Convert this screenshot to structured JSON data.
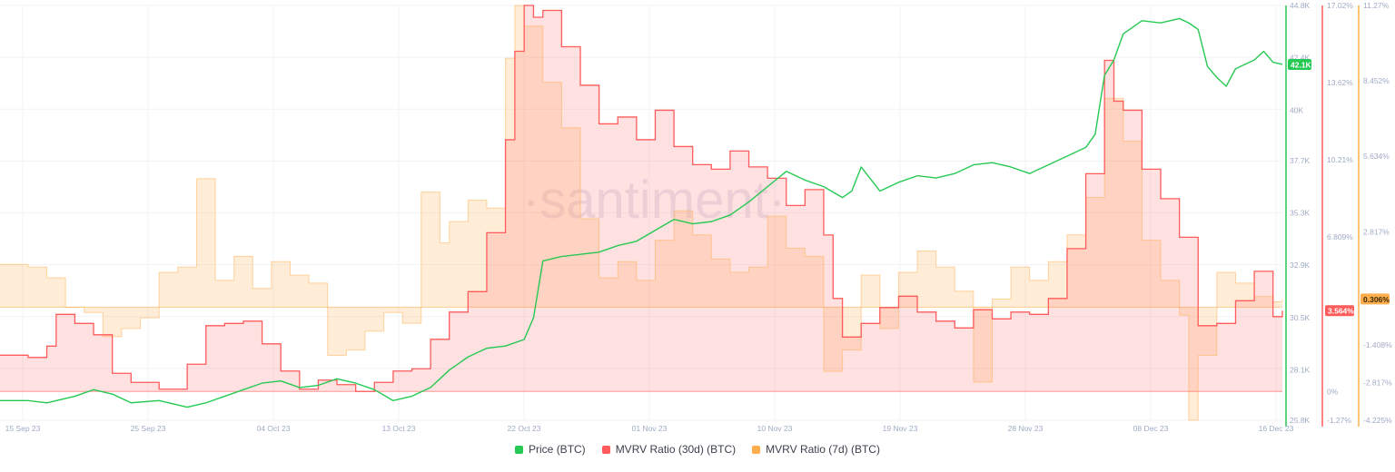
{
  "watermark": "·santiment·",
  "colors": {
    "price": "#26c953",
    "mvrv30": "#ff5b5b",
    "mvrv7": "#ffad4d",
    "grid": "#f1f3f7",
    "axis_text": "#9faac4"
  },
  "chart_data": {
    "type": "line",
    "x_ticks": [
      "15 Sep 23",
      "25 Sep 23",
      "04 Oct 23",
      "13 Oct 23",
      "22 Oct 23",
      "01 Nov 23",
      "10 Nov 23",
      "19 Nov 23",
      "28 Nov 23",
      "08 Dec 23",
      "16 Dec 23"
    ],
    "axes": {
      "price": {
        "ticks": [
          "44.8K",
          "42.4K",
          "40K",
          "37.7K",
          "35.3K",
          "32.9K",
          "30.5K",
          "28.1K",
          "25.8K"
        ],
        "min": 25.8,
        "max": 44.8,
        "unit": "K"
      },
      "mvrv30": {
        "ticks": [
          "17.02%",
          "13.62%",
          "10.21%",
          "6.809%",
          "3.564%",
          "0%",
          "-1.27%"
        ],
        "min": -1.27,
        "max": 17.02,
        "unit": "%"
      },
      "mvrv7": {
        "ticks": [
          "11.27%",
          "8.452%",
          "5.634%",
          "2.817%",
          "0.306%",
          "-1.408%",
          "-2.817%",
          "-4.225%"
        ],
        "min": -4.225,
        "max": 11.27,
        "unit": "%"
      }
    },
    "current": {
      "price": "42.1K",
      "mvrv30": "3.564%",
      "mvrv7": "0.306%"
    },
    "series": [
      {
        "name": "Price (BTC)",
        "axis": "price",
        "points": [
          [
            0,
            26.7
          ],
          [
            3,
            26.7
          ],
          [
            5,
            26.6
          ],
          [
            8,
            26.9
          ],
          [
            10,
            27.2
          ],
          [
            12,
            27.0
          ],
          [
            14,
            26.6
          ],
          [
            17,
            26.7
          ],
          [
            20,
            26.4
          ],
          [
            22,
            26.6
          ],
          [
            24,
            26.9
          ],
          [
            26,
            27.2
          ],
          [
            28,
            27.5
          ],
          [
            30,
            27.6
          ],
          [
            32,
            27.3
          ],
          [
            34,
            27.4
          ],
          [
            36,
            27.7
          ],
          [
            38,
            27.5
          ],
          [
            40,
            27.2
          ],
          [
            42,
            26.7
          ],
          [
            44,
            26.9
          ],
          [
            46,
            27.3
          ],
          [
            48,
            28.1
          ],
          [
            50,
            28.7
          ],
          [
            52,
            29.1
          ],
          [
            54,
            29.2
          ],
          [
            56,
            29.5
          ],
          [
            57,
            30.5
          ],
          [
            58,
            33.1
          ],
          [
            60,
            33.3
          ],
          [
            62,
            33.4
          ],
          [
            64,
            33.5
          ],
          [
            66,
            33.8
          ],
          [
            68,
            34.0
          ],
          [
            70,
            34.5
          ],
          [
            72,
            35.0
          ],
          [
            74,
            34.8
          ],
          [
            76,
            34.9
          ],
          [
            78,
            35.2
          ],
          [
            80,
            35.8
          ],
          [
            82,
            36.5
          ],
          [
            84,
            37.2
          ],
          [
            86,
            36.8
          ],
          [
            88,
            36.5
          ],
          [
            90,
            36.0
          ],
          [
            91,
            36.3
          ],
          [
            92,
            37.4
          ],
          [
            94,
            36.3
          ],
          [
            96,
            36.7
          ],
          [
            98,
            37.0
          ],
          [
            100,
            36.9
          ],
          [
            102,
            37.1
          ],
          [
            104,
            37.5
          ],
          [
            106,
            37.6
          ],
          [
            108,
            37.4
          ],
          [
            110,
            37.1
          ],
          [
            112,
            37.5
          ],
          [
            114,
            37.9
          ],
          [
            116,
            38.3
          ],
          [
            117,
            38.9
          ],
          [
            118,
            41.6
          ],
          [
            119,
            42.3
          ],
          [
            120,
            43.5
          ],
          [
            122,
            44.1
          ],
          [
            124,
            44.0
          ],
          [
            126,
            44.2
          ],
          [
            127,
            44.0
          ],
          [
            128,
            43.7
          ],
          [
            129,
            42.0
          ],
          [
            130,
            41.5
          ],
          [
            131,
            41.1
          ],
          [
            132,
            41.9
          ],
          [
            134,
            42.3
          ],
          [
            135,
            42.7
          ],
          [
            136,
            42.2
          ],
          [
            137,
            42.1
          ]
        ]
      },
      {
        "name": "MVRV Ratio (30d) (BTC)",
        "axis": "mvrv30",
        "points": [
          [
            0,
            1.6
          ],
          [
            3,
            1.5
          ],
          [
            5,
            2.0
          ],
          [
            6,
            3.4
          ],
          [
            8,
            3.0
          ],
          [
            10,
            2.5
          ],
          [
            12,
            0.8
          ],
          [
            14,
            0.4
          ],
          [
            17,
            0.1
          ],
          [
            20,
            1.2
          ],
          [
            22,
            2.9
          ],
          [
            24,
            3.0
          ],
          [
            26,
            3.1
          ],
          [
            28,
            2.1
          ],
          [
            30,
            0.9
          ],
          [
            32,
            0.1
          ],
          [
            34,
            0.5
          ],
          [
            36,
            0.3
          ],
          [
            38,
            0.0
          ],
          [
            40,
            0.4
          ],
          [
            42,
            0.9
          ],
          [
            44,
            1.0
          ],
          [
            46,
            2.3
          ],
          [
            48,
            3.5
          ],
          [
            50,
            4.4
          ],
          [
            52,
            7.0
          ],
          [
            54,
            11.1
          ],
          [
            55,
            15.0
          ],
          [
            56,
            17.02
          ],
          [
            57,
            16.5
          ],
          [
            58,
            16.8
          ],
          [
            60,
            15.2
          ],
          [
            62,
            13.5
          ],
          [
            64,
            11.8
          ],
          [
            66,
            12.1
          ],
          [
            68,
            11.1
          ],
          [
            70,
            12.4
          ],
          [
            72,
            10.8
          ],
          [
            74,
            10.0
          ],
          [
            76,
            9.8
          ],
          [
            78,
            10.6
          ],
          [
            80,
            9.9
          ],
          [
            82,
            9.4
          ],
          [
            84,
            8.2
          ],
          [
            86,
            8.9
          ],
          [
            88,
            6.9
          ],
          [
            89,
            4.1
          ],
          [
            90,
            2.4
          ],
          [
            92,
            3.0
          ],
          [
            94,
            3.7
          ],
          [
            96,
            4.2
          ],
          [
            98,
            3.5
          ],
          [
            100,
            3.1
          ],
          [
            102,
            2.8
          ],
          [
            104,
            3.6
          ],
          [
            106,
            3.2
          ],
          [
            108,
            3.5
          ],
          [
            110,
            3.4
          ],
          [
            112,
            4.1
          ],
          [
            114,
            6.3
          ],
          [
            116,
            9.6
          ],
          [
            118,
            14.6
          ],
          [
            119,
            12.8
          ],
          [
            120,
            12.4
          ],
          [
            122,
            9.8
          ],
          [
            124,
            8.5
          ],
          [
            126,
            6.8
          ],
          [
            128,
            2.9
          ],
          [
            130,
            3.0
          ],
          [
            132,
            4.0
          ],
          [
            134,
            5.3
          ],
          [
            136,
            3.3
          ],
          [
            137,
            3.564
          ]
        ]
      },
      {
        "name": "MVRV Ratio (7d) (BTC)",
        "axis": "mvrv7",
        "points": [
          [
            0,
            1.6
          ],
          [
            3,
            1.5
          ],
          [
            5,
            1.1
          ],
          [
            7,
            0.0
          ],
          [
            9,
            -0.2
          ],
          [
            11,
            -1.1
          ],
          [
            13,
            -0.8
          ],
          [
            15,
            -0.4
          ],
          [
            17,
            1.3
          ],
          [
            19,
            1.5
          ],
          [
            21,
            4.8
          ],
          [
            23,
            1.0
          ],
          [
            25,
            1.9
          ],
          [
            27,
            0.7
          ],
          [
            29,
            1.7
          ],
          [
            31,
            1.2
          ],
          [
            33,
            0.9
          ],
          [
            35,
            -1.8
          ],
          [
            37,
            -1.6
          ],
          [
            39,
            -0.9
          ],
          [
            41,
            -0.2
          ],
          [
            43,
            -0.6
          ],
          [
            45,
            4.3
          ],
          [
            47,
            2.4
          ],
          [
            48,
            3.2
          ],
          [
            50,
            4.0
          ],
          [
            52,
            3.7
          ],
          [
            54,
            9.3
          ],
          [
            55,
            11.27
          ],
          [
            56,
            10.5
          ],
          [
            58,
            8.4
          ],
          [
            60,
            6.7
          ],
          [
            62,
            3.3
          ],
          [
            64,
            1.1
          ],
          [
            66,
            1.7
          ],
          [
            68,
            1.0
          ],
          [
            70,
            2.5
          ],
          [
            72,
            3.6
          ],
          [
            74,
            2.7
          ],
          [
            76,
            1.8
          ],
          [
            78,
            1.3
          ],
          [
            80,
            1.5
          ],
          [
            82,
            3.4
          ],
          [
            84,
            2.2
          ],
          [
            86,
            1.9
          ],
          [
            88,
            -2.4
          ],
          [
            90,
            -1.6
          ],
          [
            92,
            1.2
          ],
          [
            94,
            -0.8
          ],
          [
            96,
            1.3
          ],
          [
            98,
            2.1
          ],
          [
            100,
            1.5
          ],
          [
            102,
            0.6
          ],
          [
            104,
            -2.8
          ],
          [
            106,
            0.3
          ],
          [
            108,
            1.5
          ],
          [
            110,
            1.0
          ],
          [
            112,
            1.7
          ],
          [
            114,
            2.7
          ],
          [
            116,
            4.1
          ],
          [
            118,
            7.8
          ],
          [
            120,
            6.2
          ],
          [
            122,
            2.5
          ],
          [
            124,
            1.0
          ],
          [
            126,
            -0.3
          ],
          [
            127,
            -4.225
          ],
          [
            128,
            -1.8
          ],
          [
            130,
            1.3
          ],
          [
            132,
            0.9
          ],
          [
            134,
            0.4
          ],
          [
            136,
            0.2
          ],
          [
            137,
            0.306
          ]
        ]
      }
    ],
    "x_range": [
      0,
      137
    ],
    "legend_position": "bottom-center",
    "grid": true
  }
}
